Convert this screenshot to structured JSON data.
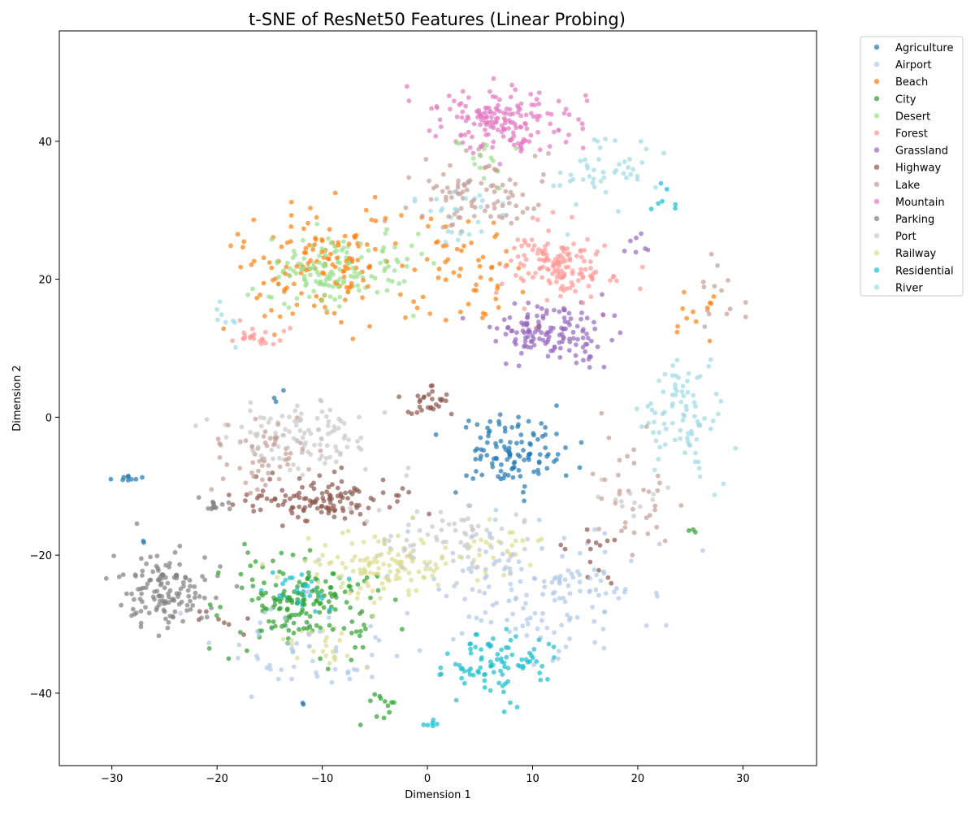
{
  "chart_data": {
    "type": "scatter",
    "title": "t-SNE of ResNet50 Features (Linear Probing)",
    "xlabel": "Dimension 1",
    "ylabel": "Dimension 2",
    "xlim": [
      -35,
      37
    ],
    "ylim": [
      -50.5,
      56
    ],
    "xticks": [
      -30,
      -20,
      -10,
      0,
      10,
      20,
      30
    ],
    "yticks": [
      -40,
      -20,
      0,
      20,
      40
    ],
    "xtick_labels": [
      "−30",
      "−20",
      "−10",
      "0",
      "10",
      "20",
      "30"
    ],
    "ytick_labels": [
      "−40",
      "−20",
      "0",
      "20",
      "40"
    ],
    "grid": false,
    "legend_position": "outside-right-top",
    "marker_alpha": 0.7,
    "series": [
      {
        "name": "Agriculture",
        "color": "#1f77b4",
        "clusters": [
          {
            "cx": 8,
            "cy": -5,
            "sx": 5,
            "sy": 5,
            "n": 110
          },
          {
            "cx": -28.5,
            "cy": -8.8,
            "sx": 1.2,
            "sy": 0.4,
            "n": 9
          },
          {
            "cx": -14,
            "cy": 3,
            "sx": 1,
            "sy": 1,
            "n": 3
          },
          {
            "cx": -27,
            "cy": -19,
            "sx": 1,
            "sy": 1,
            "n": 2
          },
          {
            "cx": -12,
            "cy": -41,
            "sx": 1,
            "sy": 1,
            "n": 2
          }
        ]
      },
      {
        "name": "Airport",
        "color": "#aec7e8",
        "clusters": [
          {
            "cx": 10,
            "cy": -25,
            "sx": 10,
            "sy": 8,
            "n": 150
          },
          {
            "cx": -12,
            "cy": -34,
            "sx": 8,
            "sy": 6,
            "n": 55
          }
        ]
      },
      {
        "name": "Beach",
        "color": "#ff7f0e",
        "clusters": [
          {
            "cx": -10,
            "cy": 22,
            "sx": 8,
            "sy": 8,
            "n": 140
          },
          {
            "cx": 4,
            "cy": 22,
            "sx": 5,
            "sy": 8,
            "n": 55
          },
          {
            "cx": 25,
            "cy": 15,
            "sx": 2.5,
            "sy": 4,
            "n": 12
          }
        ]
      },
      {
        "name": "City",
        "color": "#2ca02c",
        "clusters": [
          {
            "cx": -12,
            "cy": -27,
            "sx": 7,
            "sy": 6,
            "n": 165
          },
          {
            "cx": -4,
            "cy": -42,
            "sx": 2,
            "sy": 2,
            "n": 12
          },
          {
            "cx": 25,
            "cy": -16.5,
            "sx": 0.5,
            "sy": 0.5,
            "n": 3
          }
        ]
      },
      {
        "name": "Desert",
        "color": "#98df8a",
        "clusters": [
          {
            "cx": -9,
            "cy": 21,
            "sx": 6,
            "sy": 5,
            "n": 150
          },
          {
            "cx": 5,
            "cy": 38,
            "sx": 3,
            "sy": 4,
            "n": 14
          }
        ]
      },
      {
        "name": "Forest",
        "color": "#ff9896",
        "clusters": [
          {
            "cx": 12.5,
            "cy": 22,
            "sx": 4.5,
            "sy": 4.5,
            "n": 140
          },
          {
            "cx": -16,
            "cy": 12,
            "sx": 2.5,
            "sy": 1.5,
            "n": 22
          }
        ]
      },
      {
        "name": "Grassland",
        "color": "#9467bd",
        "clusters": [
          {
            "cx": 12,
            "cy": 12,
            "sx": 5,
            "sy": 4,
            "n": 140
          },
          {
            "cx": 20,
            "cy": 25,
            "sx": 1.5,
            "sy": 2,
            "n": 7
          }
        ]
      },
      {
        "name": "Highway",
        "color": "#8c564b",
        "clusters": [
          {
            "cx": -10,
            "cy": -12,
            "sx": 7,
            "sy": 3,
            "n": 120
          },
          {
            "cx": 0,
            "cy": 2.5,
            "sx": 2,
            "sy": 2.5,
            "n": 28
          },
          {
            "cx": 15,
            "cy": -20,
            "sx": 3,
            "sy": 5,
            "n": 14
          },
          {
            "cx": -19,
            "cy": -30,
            "sx": 3,
            "sy": 2,
            "n": 8
          }
        ]
      },
      {
        "name": "Lake",
        "color": "#c49c94",
        "clusters": [
          {
            "cx": 5,
            "cy": 32,
            "sx": 6,
            "sy": 5,
            "n": 90
          },
          {
            "cx": -15,
            "cy": -6,
            "sx": 5,
            "sy": 6,
            "n": 55
          },
          {
            "cx": 20,
            "cy": -12,
            "sx": 4,
            "sy": 7,
            "n": 35
          },
          {
            "cx": 28,
            "cy": 18,
            "sx": 3,
            "sy": 4,
            "n": 14
          }
        ]
      },
      {
        "name": "Mountain",
        "color": "#e377c2",
        "clusters": [
          {
            "cx": 7,
            "cy": 43,
            "sx": 6,
            "sy": 4,
            "n": 170
          }
        ]
      },
      {
        "name": "Parking",
        "color": "#7f7f7f",
        "clusters": [
          {
            "cx": -25,
            "cy": -25,
            "sx": 4,
            "sy": 5,
            "n": 130
          },
          {
            "cx": -20,
            "cy": -13,
            "sx": 1.5,
            "sy": 1,
            "n": 12
          }
        ]
      },
      {
        "name": "Port",
        "color": "#c7c7c7",
        "clusters": [
          {
            "cx": -12,
            "cy": -3,
            "sx": 7,
            "sy": 5,
            "n": 110
          },
          {
            "cx": 3,
            "cy": -18,
            "sx": 7,
            "sy": 5,
            "n": 75
          },
          {
            "cx": 20,
            "cy": -12,
            "sx": 3,
            "sy": 3,
            "n": 12
          }
        ]
      },
      {
        "name": "Railway",
        "color": "#dbdb8d",
        "clusters": [
          {
            "cx": -4,
            "cy": -22,
            "sx": 7,
            "sy": 4,
            "n": 120
          },
          {
            "cx": -10,
            "cy": -33,
            "sx": 4,
            "sy": 3,
            "n": 25
          },
          {
            "cx": 7,
            "cy": -20,
            "sx": 4,
            "sy": 4,
            "n": 25
          }
        ]
      },
      {
        "name": "Residential",
        "color": "#17becf",
        "clusters": [
          {
            "cx": 7,
            "cy": -36,
            "sx": 4.5,
            "sy": 4,
            "n": 90
          },
          {
            "cx": -12,
            "cy": -25,
            "sx": 3,
            "sy": 2.5,
            "n": 30
          },
          {
            "cx": 22.5,
            "cy": 32,
            "sx": 1,
            "sy": 2,
            "n": 7
          },
          {
            "cx": 0.5,
            "cy": -44.5,
            "sx": 0.8,
            "sy": 0.6,
            "n": 6
          }
        ]
      },
      {
        "name": "River",
        "color": "#9edae5",
        "clusters": [
          {
            "cx": 24,
            "cy": 0,
            "sx": 4,
            "sy": 9,
            "n": 85
          },
          {
            "cx": 17,
            "cy": 36,
            "sx": 4,
            "sy": 4,
            "n": 45
          },
          {
            "cx": 4,
            "cy": 30,
            "sx": 5,
            "sy": 5,
            "n": 28
          },
          {
            "cx": -19,
            "cy": 14,
            "sx": 1.5,
            "sy": 3,
            "n": 8
          }
        ]
      }
    ]
  }
}
